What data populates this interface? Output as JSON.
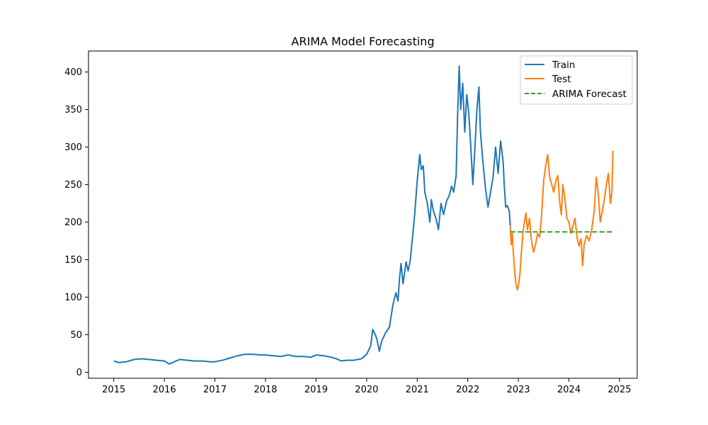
{
  "chart_data": {
    "type": "line",
    "title": "ARIMA Model Forecasting",
    "xlabel": "",
    "ylabel": "",
    "xlim": [
      2014.5,
      2025.35
    ],
    "ylim": [
      -8,
      428
    ],
    "xticks": [
      2015,
      2016,
      2017,
      2018,
      2019,
      2020,
      2021,
      2022,
      2023,
      2024,
      2025
    ],
    "xtick_labels": [
      "2015",
      "2016",
      "2017",
      "2018",
      "2019",
      "2020",
      "2021",
      "2022",
      "2023",
      "2024",
      "2025"
    ],
    "yticks": [
      0,
      50,
      100,
      150,
      200,
      250,
      300,
      350,
      400
    ],
    "ytick_labels": [
      "0",
      "50",
      "100",
      "150",
      "200",
      "250",
      "300",
      "350",
      "400"
    ],
    "grid": false,
    "legend_position": "upper right",
    "series": [
      {
        "name": "Train",
        "color": "#1f77b4",
        "style": "solid",
        "points": [
          [
            2015.0,
            15
          ],
          [
            2015.1,
            13
          ],
          [
            2015.25,
            14
          ],
          [
            2015.4,
            17
          ],
          [
            2015.55,
            18
          ],
          [
            2015.7,
            17
          ],
          [
            2015.85,
            16
          ],
          [
            2016.0,
            15
          ],
          [
            2016.1,
            11
          ],
          [
            2016.2,
            14
          ],
          [
            2016.3,
            17
          ],
          [
            2016.45,
            16
          ],
          [
            2016.6,
            15
          ],
          [
            2016.75,
            15
          ],
          [
            2016.9,
            14
          ],
          [
            2017.0,
            14
          ],
          [
            2017.15,
            16
          ],
          [
            2017.3,
            19
          ],
          [
            2017.45,
            22
          ],
          [
            2017.6,
            24
          ],
          [
            2017.75,
            24
          ],
          [
            2017.9,
            23
          ],
          [
            2018.0,
            23
          ],
          [
            2018.15,
            22
          ],
          [
            2018.3,
            21
          ],
          [
            2018.45,
            23
          ],
          [
            2018.6,
            21
          ],
          [
            2018.75,
            21
          ],
          [
            2018.9,
            20
          ],
          [
            2019.0,
            23
          ],
          [
            2019.15,
            22
          ],
          [
            2019.3,
            20
          ],
          [
            2019.4,
            18
          ],
          [
            2019.5,
            15
          ],
          [
            2019.6,
            16
          ],
          [
            2019.75,
            16
          ],
          [
            2019.9,
            18
          ],
          [
            2020.0,
            24
          ],
          [
            2020.08,
            35
          ],
          [
            2020.12,
            57
          ],
          [
            2020.17,
            50
          ],
          [
            2020.2,
            45
          ],
          [
            2020.25,
            28
          ],
          [
            2020.3,
            42
          ],
          [
            2020.37,
            52
          ],
          [
            2020.45,
            60
          ],
          [
            2020.52,
            90
          ],
          [
            2020.58,
            106
          ],
          [
            2020.62,
            95
          ],
          [
            2020.65,
            125
          ],
          [
            2020.68,
            145
          ],
          [
            2020.72,
            118
          ],
          [
            2020.78,
            147
          ],
          [
            2020.82,
            135
          ],
          [
            2020.86,
            148
          ],
          [
            2020.9,
            175
          ],
          [
            2020.95,
            210
          ],
          [
            2021.0,
            255
          ],
          [
            2021.05,
            290
          ],
          [
            2021.08,
            270
          ],
          [
            2021.12,
            275
          ],
          [
            2021.15,
            240
          ],
          [
            2021.2,
            225
          ],
          [
            2021.25,
            200
          ],
          [
            2021.28,
            230
          ],
          [
            2021.32,
            215
          ],
          [
            2021.37,
            205
          ],
          [
            2021.42,
            190
          ],
          [
            2021.47,
            225
          ],
          [
            2021.52,
            210
          ],
          [
            2021.58,
            228
          ],
          [
            2021.63,
            235
          ],
          [
            2021.68,
            248
          ],
          [
            2021.72,
            240
          ],
          [
            2021.77,
            262
          ],
          [
            2021.8,
            345
          ],
          [
            2021.83,
            408
          ],
          [
            2021.86,
            350
          ],
          [
            2021.9,
            385
          ],
          [
            2021.94,
            320
          ],
          [
            2021.98,
            370
          ],
          [
            2022.02,
            345
          ],
          [
            2022.06,
            300
          ],
          [
            2022.1,
            250
          ],
          [
            2022.15,
            310
          ],
          [
            2022.18,
            350
          ],
          [
            2022.22,
            380
          ],
          [
            2022.25,
            320
          ],
          [
            2022.3,
            280
          ],
          [
            2022.35,
            245
          ],
          [
            2022.4,
            220
          ],
          [
            2022.45,
            240
          ],
          [
            2022.5,
            260
          ],
          [
            2022.55,
            300
          ],
          [
            2022.6,
            265
          ],
          [
            2022.65,
            308
          ],
          [
            2022.7,
            280
          ],
          [
            2022.72,
            250
          ],
          [
            2022.75,
            220
          ],
          [
            2022.78,
            222
          ],
          [
            2022.82,
            215
          ],
          [
            2022.84,
            195
          ]
        ]
      },
      {
        "name": "Test",
        "color": "#ff7f0e",
        "style": "solid",
        "points": [
          [
            2022.84,
            195
          ],
          [
            2022.86,
            170
          ],
          [
            2022.88,
            185
          ],
          [
            2022.9,
            160
          ],
          [
            2022.92,
            140
          ],
          [
            2022.95,
            118
          ],
          [
            2022.98,
            110
          ],
          [
            2023.0,
            115
          ],
          [
            2023.03,
            130
          ],
          [
            2023.06,
            160
          ],
          [
            2023.09,
            185
          ],
          [
            2023.12,
            200
          ],
          [
            2023.15,
            212
          ],
          [
            2023.18,
            190
          ],
          [
            2023.22,
            205
          ],
          [
            2023.26,
            175
          ],
          [
            2023.3,
            160
          ],
          [
            2023.34,
            170
          ],
          [
            2023.38,
            185
          ],
          [
            2023.42,
            180
          ],
          [
            2023.46,
            210
          ],
          [
            2023.5,
            255
          ],
          [
            2023.54,
            275
          ],
          [
            2023.58,
            290
          ],
          [
            2023.62,
            260
          ],
          [
            2023.66,
            250
          ],
          [
            2023.7,
            240
          ],
          [
            2023.74,
            255
          ],
          [
            2023.78,
            262
          ],
          [
            2023.82,
            225
          ],
          [
            2023.85,
            210
          ],
          [
            2023.88,
            250
          ],
          [
            2023.92,
            232
          ],
          [
            2023.96,
            205
          ],
          [
            2024.0,
            200
          ],
          [
            2024.04,
            185
          ],
          [
            2024.08,
            195
          ],
          [
            2024.12,
            205
          ],
          [
            2024.16,
            180
          ],
          [
            2024.2,
            168
          ],
          [
            2024.24,
            178
          ],
          [
            2024.27,
            142
          ],
          [
            2024.3,
            170
          ],
          [
            2024.35,
            182
          ],
          [
            2024.4,
            175
          ],
          [
            2024.45,
            190
          ],
          [
            2024.5,
            215
          ],
          [
            2024.54,
            260
          ],
          [
            2024.58,
            238
          ],
          [
            2024.62,
            200
          ],
          [
            2024.66,
            215
          ],
          [
            2024.7,
            230
          ],
          [
            2024.74,
            250
          ],
          [
            2024.78,
            265
          ],
          [
            2024.82,
            225
          ],
          [
            2024.85,
            240
          ],
          [
            2024.87,
            295
          ]
        ]
      },
      {
        "name": "ARIMA Forecast",
        "color": "#2ca02c",
        "style": "dashed",
        "points": [
          [
            2022.84,
            187
          ],
          [
            2024.87,
            187
          ]
        ]
      }
    ]
  }
}
